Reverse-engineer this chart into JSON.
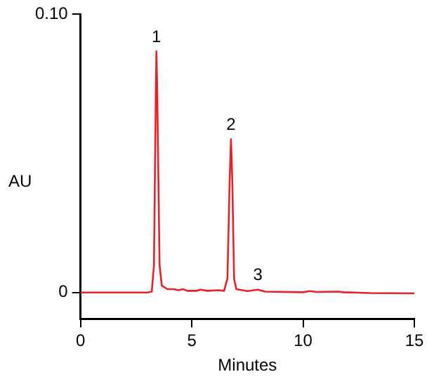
{
  "chart_data": {
    "type": "line",
    "xlabel": "Minutes",
    "ylabel": "AU",
    "xlim": [
      0,
      15
    ],
    "xticks": [
      0,
      5,
      10,
      15
    ],
    "ylim": [
      -0.0095,
      0.1
    ],
    "yticks": [
      0,
      {
        "value": 0.1,
        "label": "0.10"
      }
    ],
    "grid": false,
    "legend": false,
    "marker": "none",
    "line_style": "solid",
    "series": [
      {
        "color": "#e8202a",
        "x": [
          0,
          3.0,
          3.2,
          3.3,
          3.38,
          3.41,
          3.45,
          3.55,
          3.65,
          3.9,
          4.2,
          4.4,
          4.6,
          4.8,
          5.2,
          5.4,
          5.7,
          6.2,
          6.45,
          6.6,
          6.7,
          6.76,
          6.82,
          6.9,
          7.0,
          7.5,
          7.97,
          8.3,
          10,
          10.3,
          10.6,
          11.6,
          11.8,
          13,
          15
        ],
        "values": [
          0,
          0,
          0.0003,
          0.01,
          0.07,
          0.0867,
          0.07,
          0.01,
          0.0025,
          0.0012,
          0.0012,
          0.0008,
          0.0012,
          0.0006,
          0.0006,
          0.001,
          0.0006,
          0.0008,
          0.0006,
          0.005,
          0.04,
          0.0551,
          0.04,
          0.005,
          0.0012,
          0.0005,
          0.001,
          0.0003,
          0.0001,
          0.0005,
          0.0002,
          0.0003,
          0.0001,
          -0.0002,
          -0.0003
        ]
      }
    ],
    "annotations": [
      {
        "text": "1",
        "x": 3.41,
        "y": 0.0867
      },
      {
        "text": "2",
        "x": 6.76,
        "y": 0.0551
      },
      {
        "text": "3",
        "x": 7.97,
        "y": 0.001
      }
    ]
  }
}
